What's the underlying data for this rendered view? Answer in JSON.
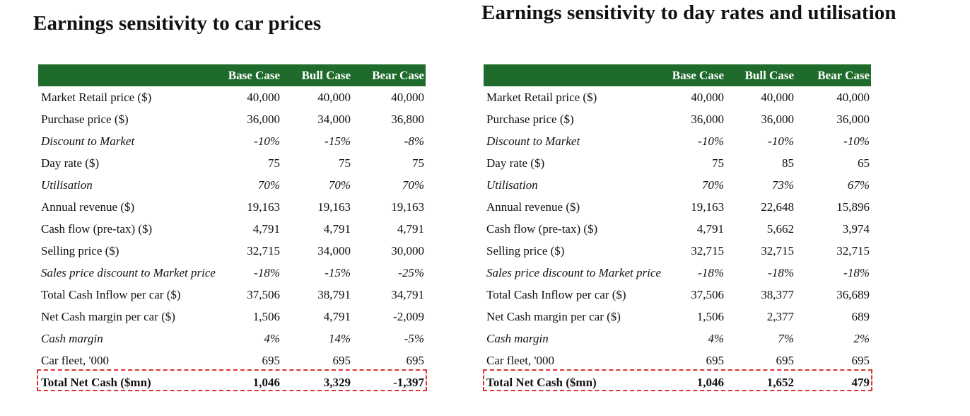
{
  "left": {
    "title": "Earnings sensitivity to car prices",
    "headers": [
      "",
      "Base Case",
      "Bull Case",
      "Bear Case"
    ],
    "rows": [
      {
        "label": "Market Retail price ($)",
        "values": [
          "40,000",
          "40,000",
          "40,000"
        ]
      },
      {
        "label": "Purchase price ($)",
        "values": [
          "36,000",
          "34,000",
          "36,800"
        ]
      },
      {
        "label": "Discount to Market",
        "values": [
          "-10%",
          "-15%",
          "-8%"
        ]
      },
      {
        "label": "Day rate ($)",
        "values": [
          "75",
          "75",
          "75"
        ]
      },
      {
        "label": "Utilisation",
        "values": [
          "70%",
          "70%",
          "70%"
        ]
      },
      {
        "label": "Annual revenue ($)",
        "values": [
          "19,163",
          "19,163",
          "19,163"
        ]
      },
      {
        "label": "Cash flow (pre-tax) ($)",
        "values": [
          "4,791",
          "4,791",
          "4,791"
        ]
      },
      {
        "label": "Selling price ($)",
        "values": [
          "32,715",
          "34,000",
          "30,000"
        ]
      },
      {
        "label": "Sales price discount to Market price",
        "values": [
          "-18%",
          "-15%",
          "-25%"
        ]
      },
      {
        "label": "Total Cash Inflow per car ($)",
        "values": [
          "37,506",
          "38,791",
          "34,791"
        ]
      },
      {
        "label": "Net Cash margin per car ($)",
        "values": [
          "1,506",
          "4,791",
          "-2,009"
        ]
      },
      {
        "label": "Cash margin",
        "values": [
          "4%",
          "14%",
          "-5%"
        ]
      },
      {
        "label": "Car fleet, '000",
        "values": [
          "695",
          "695",
          "695"
        ]
      },
      {
        "label": "Total Net Cash ($mn)",
        "values": [
          "1,046",
          "3,329",
          "-1,397"
        ]
      }
    ]
  },
  "right": {
    "title": "Earnings sensitivity to day rates and utilisation",
    "headers": [
      "",
      "Base Case",
      "Bull Case",
      "Bear Case"
    ],
    "rows": [
      {
        "label": "Market Retail price ($)",
        "values": [
          "40,000",
          "40,000",
          "40,000"
        ]
      },
      {
        "label": "Purchase price ($)",
        "values": [
          "36,000",
          "36,000",
          "36,000"
        ]
      },
      {
        "label": "Discount to Market",
        "values": [
          "-10%",
          "-10%",
          "-10%"
        ]
      },
      {
        "label": "Day rate ($)",
        "values": [
          "75",
          "85",
          "65"
        ]
      },
      {
        "label": "Utilisation",
        "values": [
          "70%",
          "73%",
          "67%"
        ]
      },
      {
        "label": "Annual revenue ($)",
        "values": [
          "19,163",
          "22,648",
          "15,896"
        ]
      },
      {
        "label": "Cash flow (pre-tax) ($)",
        "values": [
          "4,791",
          "5,662",
          "3,974"
        ]
      },
      {
        "label": "Selling price ($)",
        "values": [
          "32,715",
          "32,715",
          "32,715"
        ]
      },
      {
        "label": "Sales price discount to Market price",
        "values": [
          "-18%",
          "-18%",
          "-18%"
        ]
      },
      {
        "label": "Total Cash Inflow per car ($)",
        "values": [
          "37,506",
          "38,377",
          "36,689"
        ]
      },
      {
        "label": "Net Cash margin per car ($)",
        "values": [
          "1,506",
          "2,377",
          "689"
        ]
      },
      {
        "label": "Cash margin",
        "values": [
          "4%",
          "7%",
          "2%"
        ]
      },
      {
        "label": "Car fleet, '000",
        "values": [
          "695",
          "695",
          "695"
        ]
      },
      {
        "label": "Total Net Cash ($mn)",
        "values": [
          "1,046",
          "1,652",
          "479"
        ]
      }
    ]
  },
  "colors": {
    "header_bg": "#1f6b2b",
    "header_text": "#ffffff",
    "highlight_border": "#e03131"
  }
}
